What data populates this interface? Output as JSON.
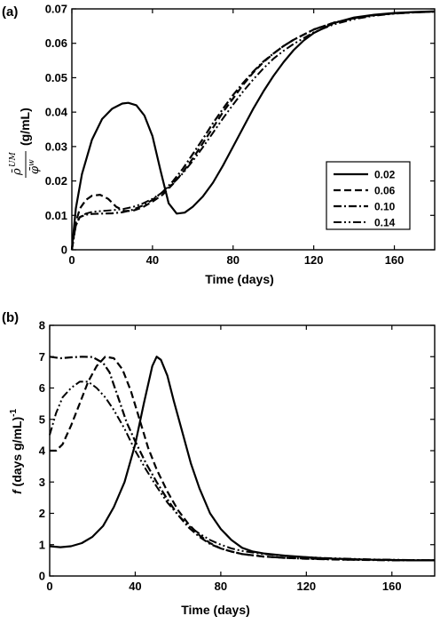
{
  "chart_data": [
    {
      "type": "line",
      "panel_label": "(a)",
      "xlabel": "Time (days)",
      "ylabel_unit": "(g/mL)",
      "xlim": [
        0,
        180
      ],
      "ylim": [
        0,
        0.07
      ],
      "xticks": [
        "0",
        "40",
        "80",
        "120",
        "160"
      ],
      "yticks": [
        "0",
        "0.01",
        "0.02",
        "0.03",
        "0.04",
        "0.05",
        "0.06",
        "0.07"
      ],
      "legend": "right",
      "series": [
        {
          "name": "0.02",
          "dash": "solid",
          "x": [
            0,
            2,
            5,
            10,
            15,
            20,
            25,
            28,
            32,
            36,
            40,
            44,
            48,
            52,
            56,
            60,
            65,
            70,
            75,
            80,
            85,
            90,
            95,
            100,
            105,
            110,
            115,
            120,
            130,
            140,
            150,
            160,
            170,
            180
          ],
          "y": [
            0,
            0.012,
            0.022,
            0.032,
            0.038,
            0.041,
            0.0425,
            0.0427,
            0.042,
            0.039,
            0.033,
            0.023,
            0.0135,
            0.0105,
            0.0108,
            0.0125,
            0.0155,
            0.0195,
            0.0245,
            0.03,
            0.0355,
            0.041,
            0.046,
            0.0505,
            0.0545,
            0.058,
            0.0608,
            0.063,
            0.0659,
            0.0675,
            0.0683,
            0.0688,
            0.0691,
            0.0693
          ]
        },
        {
          "name": "0.06",
          "dash": "dash",
          "x": [
            0,
            2,
            4,
            7,
            10,
            14,
            18,
            22,
            26,
            30,
            35,
            40,
            45,
            50,
            55,
            60,
            65,
            70,
            75,
            80,
            85,
            90,
            95,
            100,
            105,
            110,
            120,
            130,
            140,
            150,
            160,
            170,
            180
          ],
          "y": [
            0,
            0.008,
            0.012,
            0.0145,
            0.0157,
            0.016,
            0.0148,
            0.0125,
            0.0113,
            0.0113,
            0.0123,
            0.014,
            0.016,
            0.019,
            0.0225,
            0.0265,
            0.031,
            0.0355,
            0.04,
            0.044,
            0.048,
            0.0515,
            0.0545,
            0.057,
            0.0592,
            0.061,
            0.064,
            0.066,
            0.0673,
            0.0682,
            0.0687,
            0.069,
            0.0692
          ]
        },
        {
          "name": "0.10",
          "dash": "dashdot",
          "x": [
            0,
            2,
            4,
            7,
            10,
            15,
            20,
            25,
            30,
            35,
            40,
            45,
            50,
            55,
            60,
            65,
            70,
            75,
            80,
            85,
            90,
            95,
            100,
            105,
            110,
            120,
            130,
            140,
            150,
            160,
            170,
            180
          ],
          "y": [
            0,
            0.0075,
            0.0095,
            0.0102,
            0.0104,
            0.0105,
            0.0106,
            0.0109,
            0.0116,
            0.0128,
            0.0145,
            0.0168,
            0.0198,
            0.0235,
            0.0278,
            0.0322,
            0.0368,
            0.041,
            0.045,
            0.0485,
            0.0518,
            0.0547,
            0.057,
            0.0592,
            0.061,
            0.064,
            0.066,
            0.0673,
            0.0682,
            0.0687,
            0.069,
            0.0692
          ]
        },
        {
          "name": "0.14",
          "dash": "dashdotdot",
          "x": [
            0,
            2,
            4,
            7,
            10,
            15,
            20,
            25,
            30,
            35,
            40,
            45,
            50,
            55,
            60,
            65,
            70,
            75,
            80,
            85,
            90,
            95,
            100,
            105,
            110,
            120,
            130,
            140,
            150,
            160,
            170,
            180
          ],
          "y": [
            0,
            0.007,
            0.0095,
            0.0105,
            0.011,
            0.0113,
            0.0115,
            0.0118,
            0.0124,
            0.0134,
            0.0148,
            0.0167,
            0.0192,
            0.0222,
            0.0258,
            0.0298,
            0.034,
            0.0382,
            0.0422,
            0.046,
            0.0495,
            0.0527,
            0.0555,
            0.0578,
            0.0598,
            0.0632,
            0.0655,
            0.067,
            0.068,
            0.0686,
            0.069,
            0.0692
          ]
        }
      ]
    },
    {
      "type": "line",
      "panel_label": "(b)",
      "xlabel": "Time (days)",
      "ylabel_f": "f",
      "ylabel_rest": " (days g/mL)",
      "ylabel_sup": "-1",
      "xlim": [
        0,
        180
      ],
      "ylim": [
        0,
        8
      ],
      "xticks": [
        "0",
        "40",
        "80",
        "120",
        "160"
      ],
      "yticks": [
        "0",
        "1",
        "2",
        "3",
        "4",
        "5",
        "6",
        "7",
        "8"
      ],
      "series": [
        {
          "name": "0.02",
          "dash": "solid",
          "x": [
            0,
            5,
            10,
            15,
            20,
            25,
            30,
            35,
            40,
            44,
            48,
            50,
            52,
            55,
            58,
            62,
            66,
            70,
            75,
            80,
            85,
            90,
            95,
            100,
            110,
            120,
            130,
            140,
            150,
            160,
            170,
            180
          ],
          "y": [
            0.95,
            0.92,
            0.95,
            1.05,
            1.25,
            1.6,
            2.2,
            3.0,
            4.2,
            5.5,
            6.7,
            7.0,
            6.9,
            6.4,
            5.6,
            4.6,
            3.6,
            2.8,
            2.0,
            1.5,
            1.15,
            0.9,
            0.78,
            0.72,
            0.65,
            0.6,
            0.56,
            0.54,
            0.52,
            0.51,
            0.5,
            0.5
          ]
        },
        {
          "name": "0.06",
          "dash": "dash",
          "x": [
            0,
            3,
            6,
            10,
            14,
            18,
            22,
            26,
            30,
            34,
            38,
            42,
            46,
            50,
            55,
            60,
            65,
            70,
            75,
            80,
            85,
            90,
            100,
            110,
            120,
            130,
            140,
            150,
            160,
            170,
            180
          ],
          "y": [
            4.0,
            4.0,
            4.2,
            4.8,
            5.5,
            6.2,
            6.7,
            7.0,
            6.95,
            6.6,
            5.9,
            5.0,
            4.1,
            3.4,
            2.7,
            2.1,
            1.65,
            1.3,
            1.05,
            0.88,
            0.78,
            0.7,
            0.62,
            0.58,
            0.56,
            0.54,
            0.52,
            0.52,
            0.51,
            0.5,
            0.5
          ]
        },
        {
          "name": "0.10",
          "dash": "dashdot",
          "x": [
            0,
            5,
            10,
            15,
            20,
            25,
            28,
            30,
            33,
            36,
            40,
            45,
            50,
            55,
            60,
            65,
            70,
            75,
            80,
            85,
            90,
            100,
            110,
            120,
            130,
            140,
            150,
            160,
            170,
            180
          ],
          "y": [
            7.0,
            6.95,
            6.98,
            7.0,
            6.99,
            6.8,
            6.5,
            6.1,
            5.5,
            4.9,
            4.3,
            3.6,
            3.0,
            2.45,
            1.95,
            1.55,
            1.25,
            1.02,
            0.88,
            0.78,
            0.7,
            0.62,
            0.58,
            0.55,
            0.53,
            0.52,
            0.51,
            0.5,
            0.5,
            0.5
          ]
        },
        {
          "name": "0.14",
          "dash": "dashdotdot",
          "x": [
            0,
            3,
            6,
            10,
            14,
            18,
            22,
            26,
            30,
            35,
            40,
            45,
            50,
            55,
            60,
            65,
            70,
            75,
            80,
            85,
            90,
            100,
            110,
            120,
            130,
            140,
            150,
            160,
            170,
            180
          ],
          "y": [
            4.5,
            5.2,
            5.7,
            6.0,
            6.2,
            6.2,
            6.0,
            5.7,
            5.3,
            4.7,
            4.0,
            3.4,
            2.85,
            2.35,
            1.95,
            1.6,
            1.35,
            1.15,
            1.0,
            0.88,
            0.8,
            0.7,
            0.64,
            0.6,
            0.57,
            0.55,
            0.53,
            0.52,
            0.51,
            0.5
          ]
        }
      ]
    }
  ]
}
